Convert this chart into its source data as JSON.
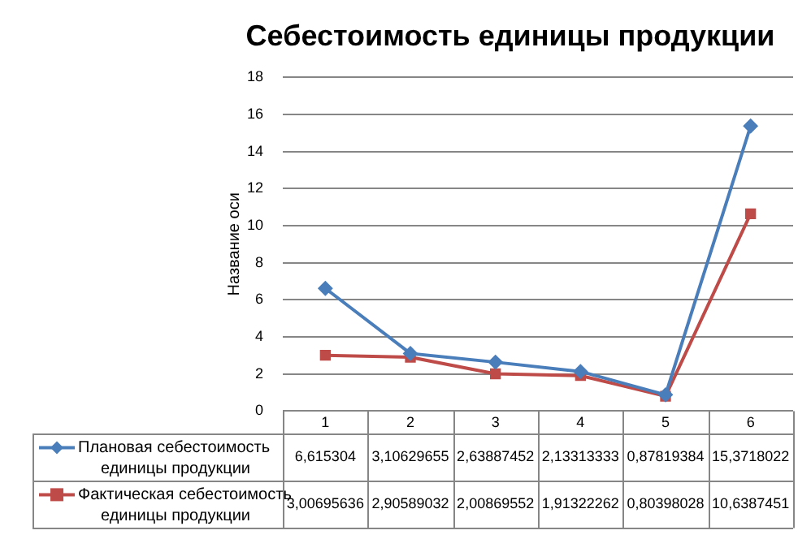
{
  "chart_data": {
    "type": "line",
    "title": "Себестоимость единицы продукции",
    "ylabel": "Название оси",
    "legend": "bottom left",
    "categories": [
      "1",
      "2",
      "3",
      "4",
      "5",
      "6"
    ],
    "series": [
      {
        "name": "Плановая себестоимость единицы продукции",
        "color": "#4a7ebb",
        "marker": "diamond",
        "values": [
          6.615304,
          3.10629655,
          2.63887452,
          2.13313333,
          0.87819384,
          15.3718022
        ],
        "value_labels": [
          "6,615304",
          "3,10629655",
          "2,63887452",
          "2,13313333",
          "0,87819384",
          "15,3718022"
        ]
      },
      {
        "name": "Фактическая себестоимость единицы продукции",
        "color": "#be4b48",
        "marker": "square",
        "values": [
          3.00695636,
          2.90589032,
          2.00869552,
          1.91322262,
          0.80398028,
          10.6387451
        ],
        "value_labels": [
          "3,00695636",
          "2,90589032",
          "2,00869552",
          "1,91322262",
          "0,80398028",
          "10,6387451"
        ]
      }
    ],
    "ylim": [
      0,
      18
    ],
    "yticks": [
      0,
      2,
      4,
      6,
      8,
      10,
      12,
      14,
      16,
      18
    ],
    "grid": "y"
  }
}
